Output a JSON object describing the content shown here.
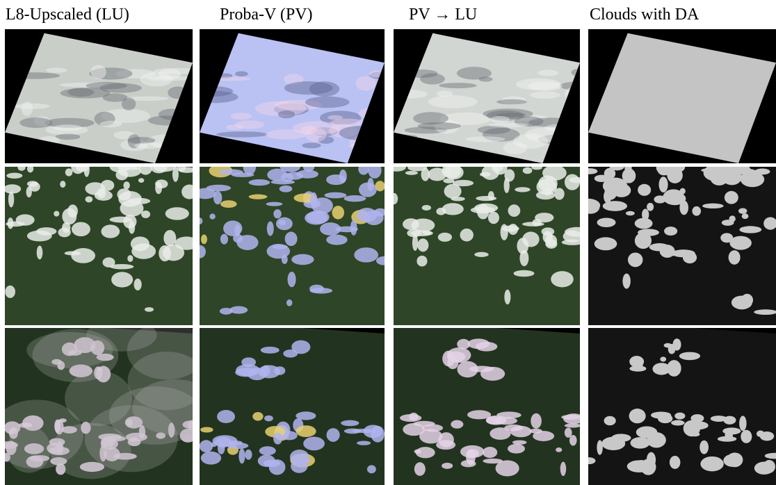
{
  "columns": [
    {
      "title": "L8-Upscaled (LU)"
    },
    {
      "title": "Proba-V (PV)"
    },
    {
      "title": "PV → LU"
    },
    {
      "title": "Clouds with DA"
    }
  ]
}
